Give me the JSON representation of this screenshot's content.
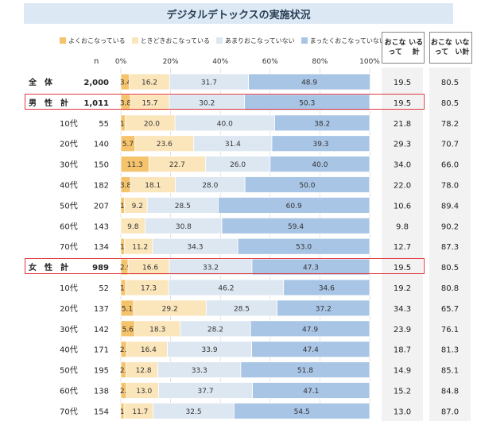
{
  "title": "デジタルデトックスの実施状況",
  "n_header": "n",
  "summary_headers": [
    "おこなって\nいる計",
    "おこなって\nいない計"
  ],
  "colors": [
    "#f5c36b",
    "#fbe6bc",
    "#dde7f2",
    "#a9c5e5"
  ],
  "chart_data": {
    "type": "bar",
    "stacked": true,
    "orientation": "horizontal",
    "title": "デジタルデトックスの実施状況",
    "xlim": [
      0,
      100
    ],
    "x_ticks": [
      "0%",
      "20%",
      "40%",
      "60%",
      "80%",
      "100%"
    ],
    "series": [
      {
        "name": "よくおこなっている",
        "color": "#f5c36b"
      },
      {
        "name": "ときどきおこなっている",
        "color": "#fbe6bc"
      },
      {
        "name": "あまりおこなっていない",
        "color": "#dde7f2"
      },
      {
        "name": "まったくおこなっていない",
        "color": "#a9c5e5"
      }
    ],
    "rows": [
      {
        "label": "全　体",
        "n": "2,000",
        "values": [
          3.4,
          16.2,
          31.7,
          48.9
        ],
        "labels": [
          "3.4",
          "16.2",
          "31.7",
          "48.9"
        ],
        "doing": "19.5",
        "not_doing": "80.5",
        "group": true
      },
      {
        "label": "男　性　計",
        "n": "1,011",
        "values": [
          3.8,
          15.7,
          30.2,
          50.3
        ],
        "labels": [
          "3.8",
          "15.7",
          "30.2",
          "50.3"
        ],
        "doing": "19.5",
        "not_doing": "80.5",
        "group": true,
        "highlight": true
      },
      {
        "label": "10代",
        "n": "55",
        "values": [
          1.8,
          20.0,
          40.0,
          38.2
        ],
        "labels": [
          "1.8",
          "20.0",
          "40.0",
          "38.2"
        ],
        "doing": "21.8",
        "not_doing": "78.2"
      },
      {
        "label": "20代",
        "n": "140",
        "values": [
          5.7,
          23.6,
          31.4,
          39.3
        ],
        "labels": [
          "5.7",
          "23.6",
          "31.4",
          "39.3"
        ],
        "doing": "29.3",
        "not_doing": "70.7"
      },
      {
        "label": "30代",
        "n": "150",
        "values": [
          11.3,
          22.7,
          26.0,
          40.0
        ],
        "labels": [
          "11.3",
          "22.7",
          "26.0",
          "40.0"
        ],
        "doing": "34.0",
        "not_doing": "66.0"
      },
      {
        "label": "40代",
        "n": "182",
        "values": [
          3.8,
          18.1,
          28.0,
          50.0
        ],
        "labels": [
          "3.8",
          "18.1",
          "28.0",
          "50.0"
        ],
        "doing": "22.0",
        "not_doing": "78.0"
      },
      {
        "label": "50代",
        "n": "207",
        "values": [
          1.4,
          9.2,
          28.5,
          60.9
        ],
        "labels": [
          "1.4",
          "9.2",
          "28.5",
          "60.9"
        ],
        "doing": "10.6",
        "not_doing": "89.4"
      },
      {
        "label": "60代",
        "n": "143",
        "values": [
          0,
          9.8,
          30.8,
          59.4
        ],
        "labels": [
          "",
          "9.8",
          "30.8",
          "59.4"
        ],
        "doing": "9.8",
        "not_doing": "90.2"
      },
      {
        "label": "70代",
        "n": "134",
        "values": [
          1.5,
          11.2,
          34.3,
          53.0
        ],
        "labels": [
          "1.5",
          "11.2",
          "34.3",
          "53.0"
        ],
        "doing": "12.7",
        "not_doing": "87.3"
      },
      {
        "label": "女　性　計",
        "n": "989",
        "values": [
          2.9,
          16.6,
          33.2,
          47.3
        ],
        "labels": [
          "2.9",
          "16.6",
          "33.2",
          "47.3"
        ],
        "doing": "19.5",
        "not_doing": "80.5",
        "group": true,
        "highlight": true
      },
      {
        "label": "10代",
        "n": "52",
        "values": [
          1.9,
          17.3,
          46.2,
          34.6
        ],
        "labels": [
          "1.9",
          "17.3",
          "46.2",
          "34.6"
        ],
        "doing": "19.2",
        "not_doing": "80.8"
      },
      {
        "label": "20代",
        "n": "137",
        "values": [
          5.1,
          29.2,
          28.5,
          37.2
        ],
        "labels": [
          "5.1",
          "29.2",
          "28.5",
          "37.2"
        ],
        "doing": "34.3",
        "not_doing": "65.7"
      },
      {
        "label": "30代",
        "n": "142",
        "values": [
          5.6,
          18.3,
          28.2,
          47.9
        ],
        "labels": [
          "5.6",
          "18.3",
          "28.2",
          "47.9"
        ],
        "doing": "23.9",
        "not_doing": "76.1"
      },
      {
        "label": "40代",
        "n": "171",
        "values": [
          2.3,
          16.4,
          33.9,
          47.4
        ],
        "labels": [
          "2.3",
          "16.4",
          "33.9",
          "47.4"
        ],
        "doing": "18.7",
        "not_doing": "81.3"
      },
      {
        "label": "50代",
        "n": "195",
        "values": [
          2.1,
          12.8,
          33.3,
          51.8
        ],
        "labels": [
          "2.1",
          "12.8",
          "33.3",
          "51.8"
        ],
        "doing": "14.9",
        "not_doing": "85.1"
      },
      {
        "label": "60代",
        "n": "138",
        "values": [
          2.2,
          13.0,
          37.7,
          47.1
        ],
        "labels": [
          "2.2",
          "13.0",
          "37.7",
          "47.1"
        ],
        "doing": "15.2",
        "not_doing": "84.8"
      },
      {
        "label": "70代",
        "n": "154",
        "values": [
          1.3,
          11.7,
          32.5,
          54.5
        ],
        "labels": [
          "1.3",
          "11.7",
          "32.5",
          "54.5"
        ],
        "doing": "13.0",
        "not_doing": "87.0"
      }
    ]
  }
}
